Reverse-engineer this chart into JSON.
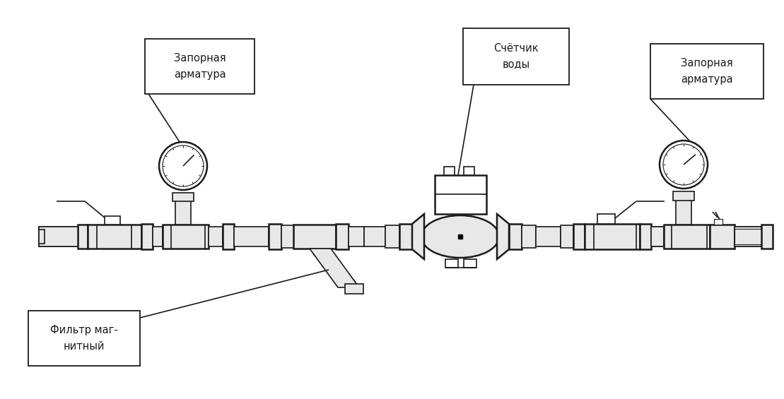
{
  "bg_color": "#ffffff",
  "line_color": "#1a1a1a",
  "labels": {
    "zapornaya1": "Запорная\nарматура",
    "zapornaya2": "Запорная\nарматура",
    "schetchik": "Счётчик\nводы",
    "filtr": "Фильтр маг-\nнитный"
  },
  "label_fontsize": 10.5,
  "figsize": [
    11.09,
    5.65
  ],
  "dpi": 100
}
